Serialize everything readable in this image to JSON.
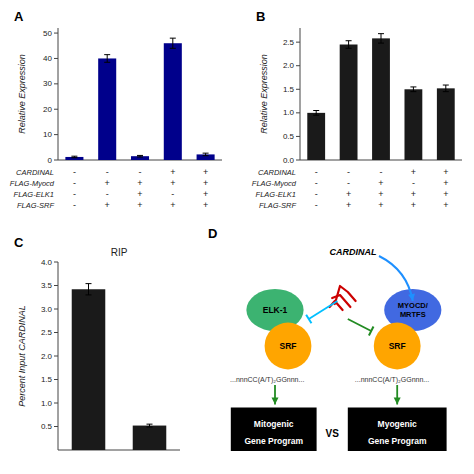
{
  "chart_data": [
    {
      "type": "bar",
      "annotations": [
        "A"
      ],
      "ylabel": "Relative Expression",
      "values": [
        1.2,
        40.0,
        1.5,
        46.0,
        2.2
      ],
      "errors": [
        0.3,
        1.5,
        0.3,
        2.0,
        0.5
      ],
      "color": "#00008B",
      "ylim": [
        0,
        52
      ],
      "yticks": [
        0,
        10,
        20,
        30,
        40,
        50
      ],
      "category_rows": [
        {
          "name": "CARDINAL",
          "labels": [
            "-",
            "-",
            "-",
            "+",
            "+"
          ]
        },
        {
          "name": "FLAG-Myocd",
          "labels": [
            "-",
            "+",
            "+",
            "+",
            "+"
          ]
        },
        {
          "name": "FLAG-ELK1",
          "labels": [
            "-",
            "-",
            "+",
            "-",
            "+"
          ]
        },
        {
          "name": "FLAG-SRF",
          "labels": [
            "-",
            "+",
            "+",
            "+",
            "+"
          ]
        }
      ]
    },
    {
      "type": "bar",
      "annotations": [
        "B"
      ],
      "ylabel": "Relative Expression",
      "values": [
        1.0,
        2.45,
        2.58,
        1.5,
        1.52
      ],
      "errors": [
        0.05,
        0.08,
        0.1,
        0.05,
        0.07
      ],
      "color": "#1a1a1a",
      "ylim": [
        0,
        2.8
      ],
      "yticks": [
        {
          "value": 0,
          "label": "0.0"
        },
        0.5,
        {
          "value": 1.0,
          "label": "1.0"
        },
        1.5,
        {
          "value": 2.0,
          "label": "2.0"
        },
        2.5
      ],
      "category_rows": [
        {
          "name": "CARDINAL",
          "labels": [
            "-",
            "-",
            "-",
            "+",
            "+"
          ]
        },
        {
          "name": "FLAG-Myocd",
          "labels": [
            "-",
            "-",
            "+",
            "-",
            "+"
          ]
        },
        {
          "name": "FLAG-ELK1",
          "labels": [
            "-",
            "+",
            "+",
            "+",
            "+"
          ]
        },
        {
          "name": "FLAG-SRF",
          "labels": [
            "-",
            "+",
            "+",
            "+",
            "+"
          ]
        }
      ]
    },
    {
      "type": "bar",
      "title": "RIP",
      "annotations": [
        "C"
      ],
      "ylabel": "Percent Input CARDINAL",
      "values": [
        3.42,
        0.52
      ],
      "errors": [
        0.12,
        0.03
      ],
      "color": "#1a1a1a",
      "ylim": [
        0,
        4.0
      ],
      "yticks": [
        0.5,
        {
          "value": 1.0,
          "label": "1.0"
        },
        1.5,
        {
          "value": 2.0,
          "label": "2.0"
        },
        2.5,
        {
          "value": 3.0,
          "label": "3.0"
        },
        3.5,
        {
          "value": 4.0,
          "label": "4.0"
        }
      ]
    },
    {
      "type": "diagram",
      "annotations": [
        "D",
        "CARDINAL",
        "VS"
      ],
      "color": "#CC0000",
      "nodes": [
        {
          "labels": [
            "ELK-1"
          ],
          "color": "#3CB371"
        },
        {
          "labels": [
            "SRF"
          ],
          "color": "#FFA500"
        },
        {
          "labels": [
            "MYOCD/",
            "MRTFS"
          ],
          "color": "#4169E1"
        },
        {
          "labels": [
            "SRF"
          ],
          "color": "#FFA500"
        }
      ],
      "sequences": [
        "...nnnCC(A/T)₂GGnnn...",
        "...nnnCC(A/T)₂GGnnn..."
      ],
      "boxes": [
        {
          "labels": [
            "Mitogenic",
            "Gene Program"
          ]
        },
        {
          "labels": [
            "Myogenic",
            "Gene Program"
          ]
        }
      ],
      "arrows": [
        {
          "type": "activate",
          "color": "#1E90FF"
        },
        {
          "type": "inhibit",
          "color": "#00BFFF"
        },
        {
          "type": "inhibit",
          "color": "#228B22"
        },
        {
          "type": "activate",
          "color": "#228B22"
        },
        {
          "type": "activate",
          "color": "#228B22"
        }
      ]
    }
  ]
}
